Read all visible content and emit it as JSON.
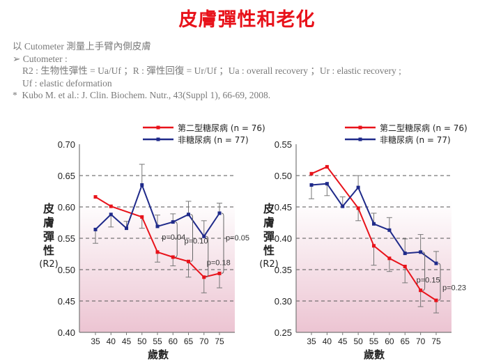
{
  "title": "皮膚彈性和老化",
  "notes": {
    "line1": "以 Cutometer 測量上手臂內側皮膚",
    "bullet": "➢",
    "line2": "Cutometer :",
    "line3": "R2 : 生物性彈性 = Ua/Uf ；R : 彈性回復 = Ur/Uf ；Ua : overall recovery ；Ur : elastic recovery ;",
    "line4": "Uf : elastic deformation",
    "star": "*",
    "line5": "Kubo M. et al.: J. Clin. Biochem. Nutr., 43(Suppl 1), 66-69, 2008."
  },
  "colors": {
    "diabetes": "#e8121a",
    "control": "#1f2a8a",
    "grid": "#555555"
  },
  "chart_data": [
    {
      "type": "line",
      "ylabel": [
        "皮",
        "膚",
        "彈",
        "性",
        "(R2)"
      ],
      "xlabel": "歲數",
      "x": [
        35,
        40,
        45,
        50,
        55,
        60,
        65,
        70,
        75
      ],
      "ylim": [
        0.4,
        0.7
      ],
      "yticks": [
        "0.40",
        "0.45",
        "0.50",
        "0.55",
        "0.60",
        "0.65",
        "0.70"
      ],
      "grid": "horizontal dashed",
      "legend": "top",
      "series": [
        {
          "name": "第二型糖尿病 (n = 76)",
          "values": [
            0.616,
            0.601,
            null,
            0.584,
            0.528,
            0.52,
            0.513,
            0.488,
            0.494
          ],
          "error": [
            0,
            0,
            null,
            0.018,
            0.016,
            0.014,
            0.025,
            0.025,
            0.023
          ]
        },
        {
          "name": "非糖尿病 (n = 77)",
          "values": [
            0.564,
            0.588,
            0.566,
            0.635,
            0.569,
            0.576,
            0.588,
            0.553,
            0.59
          ],
          "error": [
            0.022,
            0.02,
            0.011,
            0.033,
            0.018,
            0.013,
            0.021,
            0.025,
            0.016
          ]
        }
      ],
      "annotations": [
        {
          "x": 60,
          "label": "p=0.04"
        },
        {
          "x": 65,
          "label": "p=0.10"
        },
        {
          "x": 70,
          "label": "p=0.18"
        },
        {
          "x": 75,
          "label": "p=0.05"
        }
      ]
    },
    {
      "type": "line",
      "ylabel": [
        "皮",
        "膚",
        "彈",
        "性",
        "(R2)"
      ],
      "xlabel": "歲數",
      "x": [
        35,
        40,
        45,
        50,
        55,
        60,
        65,
        70,
        75
      ],
      "ylim": [
        0.25,
        0.55
      ],
      "yticks": [
        "0.25",
        "0.30",
        "0.35",
        "0.40",
        "0.45",
        "0.50",
        "0.55"
      ],
      "grid": "horizontal dashed",
      "legend": "top",
      "series": [
        {
          "name": "第二型糖尿病 (n = 76)",
          "values": [
            0.503,
            0.514,
            null,
            0.448,
            0.388,
            0.368,
            0.355,
            0.317,
            0.301
          ],
          "error": [
            0,
            0,
            null,
            0.02,
            0.031,
            0.021,
            0.026,
            0.026,
            0.02
          ]
        },
        {
          "name": "非糖尿病 (n = 77)",
          "values": [
            0.485,
            0.487,
            0.451,
            0.481,
            0.423,
            0.413,
            0.376,
            0.378,
            0.36
          ],
          "error": [
            0.022,
            0.019,
            0.015,
            0.019,
            0.017,
            0.02,
            0.023,
            0.028,
            0.019
          ]
        }
      ],
      "annotations": [
        {
          "x": 70,
          "label": "p=0.15"
        },
        {
          "x": 75,
          "label": "p=0.23"
        }
      ]
    }
  ]
}
